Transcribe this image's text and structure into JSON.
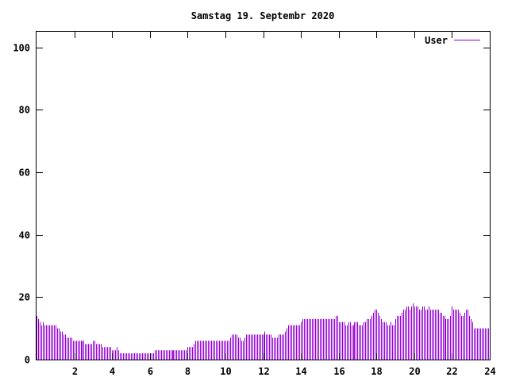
{
  "chart_data": {
    "type": "bar",
    "title": "Samstag 19. Septembr 2020",
    "xlabel": "",
    "ylabel": "",
    "xlim": [
      0,
      24
    ],
    "ylim": [
      0,
      105
    ],
    "x_ticks": [
      "2",
      "4",
      "6",
      "8",
      "10",
      "12",
      "14",
      "16",
      "18",
      "20",
      "22",
      "24"
    ],
    "y_ticks": [
      "0",
      "20",
      "40",
      "60",
      "80",
      "100"
    ],
    "legend_position": "top-right",
    "grid": false,
    "series": [
      {
        "name": "User",
        "color": "#9400d3",
        "sample_interval_minutes": 5,
        "values": [
          14,
          13,
          12,
          11,
          12,
          11,
          11,
          11,
          11,
          11,
          11,
          11,
          11,
          10,
          10,
          9,
          9,
          8,
          8,
          7,
          7,
          7,
          7,
          6,
          6,
          6,
          6,
          6,
          6,
          6,
          6,
          5,
          5,
          5,
          5,
          5,
          6,
          6,
          5,
          5,
          5,
          5,
          4,
          4,
          4,
          4,
          4,
          4,
          3,
          3,
          3,
          4,
          3,
          2,
          2,
          2,
          2,
          2,
          2,
          2,
          2,
          2,
          2,
          2,
          2,
          2,
          2,
          2,
          2,
          2,
          2,
          2,
          2,
          2,
          2,
          3,
          3,
          3,
          3,
          3,
          3,
          3,
          3,
          3,
          3,
          3,
          3,
          3,
          3,
          3,
          3,
          3,
          3,
          3,
          3,
          3,
          4,
          4,
          4,
          4,
          5,
          6,
          6,
          6,
          6,
          6,
          6,
          6,
          6,
          6,
          6,
          6,
          6,
          6,
          6,
          6,
          6,
          6,
          6,
          6,
          6,
          6,
          6,
          7,
          8,
          8,
          8,
          8,
          7,
          7,
          6,
          6,
          7,
          8,
          8,
          8,
          8,
          8,
          8,
          8,
          8,
          8,
          8,
          8,
          8,
          9,
          8,
          8,
          8,
          8,
          7,
          7,
          7,
          7,
          8,
          8,
          8,
          8,
          9,
          10,
          11,
          11,
          11,
          11,
          11,
          11,
          11,
          11,
          12,
          13,
          13,
          13,
          13,
          13,
          13,
          13,
          13,
          13,
          13,
          13,
          13,
          13,
          13,
          13,
          13,
          13,
          13,
          13,
          13,
          13,
          14,
          14,
          12,
          12,
          12,
          12,
          11,
          11,
          12,
          12,
          11,
          11,
          12,
          12,
          12,
          11,
          11,
          11,
          12,
          12,
          13,
          13,
          13,
          14,
          15,
          16,
          16,
          15,
          14,
          13,
          12,
          12,
          12,
          11,
          11,
          12,
          11,
          11,
          13,
          14,
          14,
          14,
          15,
          16,
          16,
          17,
          17,
          16,
          17,
          18,
          17,
          17,
          17,
          16,
          16,
          17,
          17,
          16,
          16,
          17,
          16,
          16,
          16,
          16,
          16,
          16,
          15,
          15,
          14,
          14,
          13,
          13,
          13,
          14,
          17,
          16,
          16,
          16,
          16,
          15,
          14,
          14,
          15,
          16,
          16,
          14,
          13,
          12,
          10,
          10,
          10,
          10,
          10,
          10,
          10,
          10,
          10,
          10
        ]
      }
    ]
  }
}
